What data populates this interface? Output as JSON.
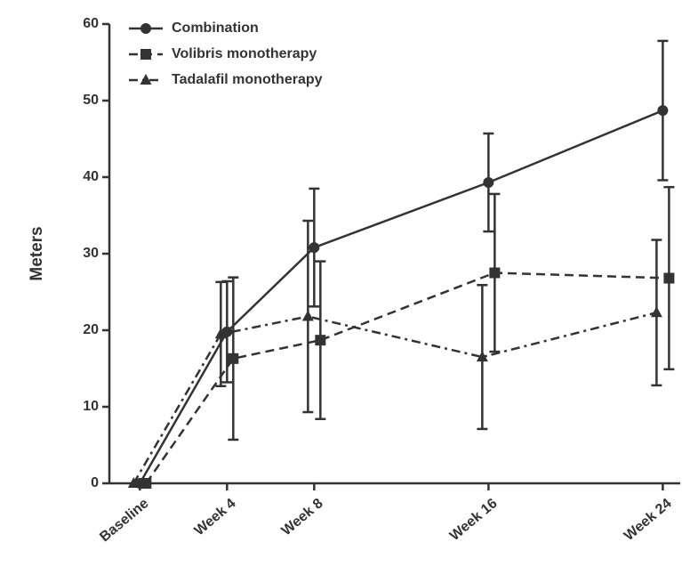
{
  "chart_data": {
    "type": "line",
    "y_label": "Meters",
    "x": [
      0,
      4,
      8,
      16,
      24
    ],
    "xlim": [
      -1.4,
      24.8
    ],
    "xticks": [
      {
        "value": 0,
        "label": "Baseline"
      },
      {
        "value": 4,
        "label": "Week 4"
      },
      {
        "value": 8,
        "label": "Week 8"
      },
      {
        "value": 16,
        "label": "Week 16"
      },
      {
        "value": 24,
        "label": "Week 24"
      }
    ],
    "ylim": [
      0,
      60
    ],
    "yticks": [
      0,
      10,
      20,
      30,
      40,
      50,
      60
    ],
    "legend": "top-left",
    "series": [
      {
        "name": "Combination",
        "color": "#333333",
        "marker": "circle",
        "linestyle": "solid",
        "values": [
          0,
          19.8,
          30.8,
          39.3,
          48.7
        ],
        "errors": [
          0,
          6.6,
          7.7,
          6.4,
          9.1
        ]
      },
      {
        "name": "Volibris monotherapy",
        "color": "#333333",
        "marker": "square",
        "linestyle": "dashed",
        "values": [
          0,
          16.3,
          18.7,
          27.5,
          26.8
        ],
        "errors": [
          0,
          10.6,
          10.3,
          10.3,
          11.9
        ]
      },
      {
        "name": "Tadalafil monotherapy",
        "color": "#333333",
        "marker": "triangle",
        "linestyle": "dashdot",
        "values": [
          0,
          19.5,
          21.8,
          16.5,
          22.3
        ],
        "errors": [
          0,
          6.8,
          12.5,
          9.4,
          9.5
        ]
      }
    ]
  }
}
